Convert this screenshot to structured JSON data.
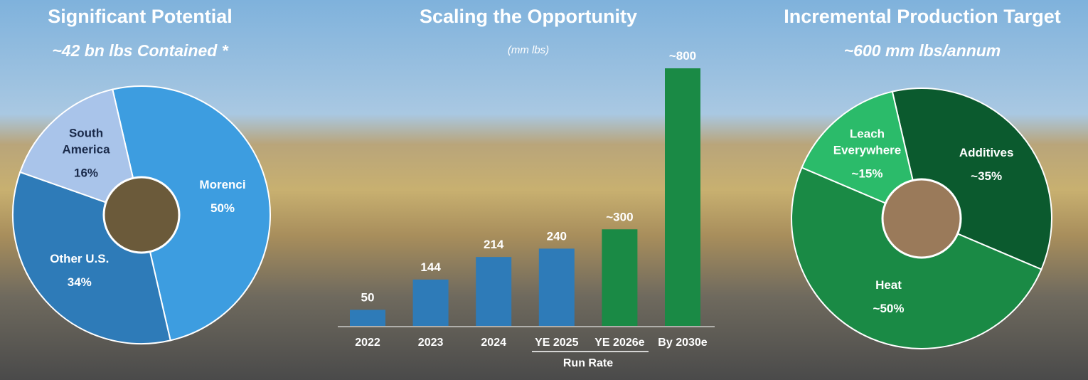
{
  "chart_data": [
    {
      "type": "donut",
      "title": "Significant Potential",
      "subtitle": "~42 bn lbs Contained *",
      "categories": [
        "Morenci",
        "Other U.S.",
        "South America"
      ],
      "values": [
        50,
        34,
        16
      ],
      "value_labels": [
        "50%",
        "34%",
        "16%"
      ],
      "colors": [
        "#3d9de0",
        "#2e7bb8",
        "#a9c4ea"
      ],
      "text_colors": [
        "#ffffff",
        "#ffffff",
        "#1a2a4a"
      ]
    },
    {
      "type": "bar",
      "title": "Scaling the Opportunity",
      "subtitle": "(mm lbs)",
      "categories": [
        "2022",
        "2023",
        "2024",
        "YE 2025",
        "YE 2026e",
        "By 2030e"
      ],
      "values": [
        50,
        144,
        214,
        240,
        300,
        800
      ],
      "value_labels": [
        "50",
        "144",
        "214",
        "240",
        "~300",
        "~800"
      ],
      "colors": [
        "#2e7bb8",
        "#2e7bb8",
        "#2e7bb8",
        "#2e7bb8",
        "#1a8a45",
        "#1a8a45"
      ],
      "annotation": "Run Rate"
    },
    {
      "type": "donut",
      "title": "Incremental Production Target",
      "subtitle": "~600 mm lbs/annum",
      "categories": [
        "Additives",
        "Heat",
        "Leach Everywhere"
      ],
      "values": [
        35,
        50,
        15
      ],
      "value_labels": [
        "~35%",
        "~50%",
        "~15%"
      ],
      "colors": [
        "#0b5a2e",
        "#1a8a45",
        "#2bbb6a"
      ],
      "text_colors": [
        "#ffffff",
        "#ffffff",
        "#ffffff"
      ]
    }
  ]
}
